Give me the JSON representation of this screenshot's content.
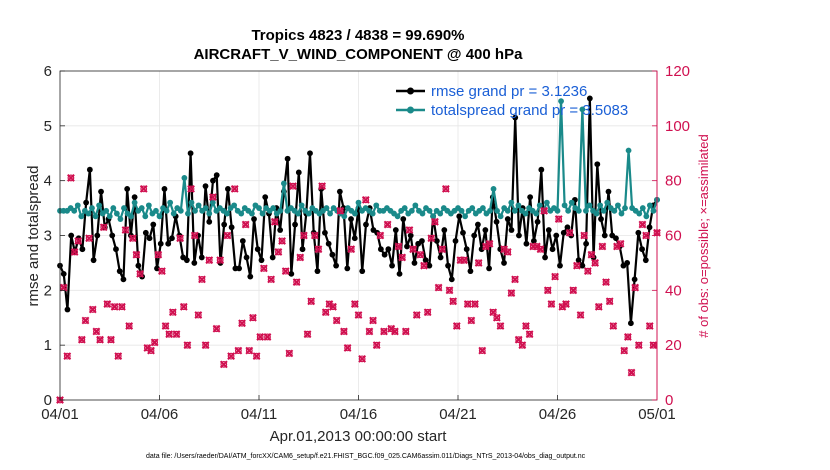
{
  "chart_data": {
    "type": "line",
    "title": "Tropics 4823 / 4838 = 99.690%",
    "subtitle": "AIRCRAFT_V_WIND_COMPONENT @ 400 hPa",
    "xlabel": "Apr.01,2013 00:00:00 start",
    "ylabel": "rmse and totalspread",
    "y2label": "# of obs: o=possible; ×=assimilated",
    "footnote": "data file: /Users/raeder/DAI/ATM_forcXX/CAM6_setup/f.e21.FHIST_BGC.f09_025.CAM6assim.011/Diags_NTrS_2013-04/obs_diag_output.nc",
    "x_tick_labels": [
      "04/01",
      "04/06",
      "04/11",
      "04/16",
      "04/21",
      "04/26",
      "05/01"
    ],
    "y_tick_labels": [
      "0",
      "1",
      "2",
      "3",
      "4",
      "5",
      "6"
    ],
    "y2_tick_labels": [
      "0",
      "20",
      "40",
      "60",
      "80",
      "100",
      "120"
    ],
    "xlim": [
      0,
      30
    ],
    "ylim": [
      0,
      6
    ],
    "y2lim": [
      0,
      120
    ],
    "grid": true,
    "legend_position": "top-right",
    "series": [
      {
        "name": "rmse grand pr = 3.1236",
        "color": "#000000",
        "axis": "left",
        "marker": "circle",
        "values": [
          2.45,
          2.3,
          1.65,
          3.0,
          2.7,
          2.95,
          2.75,
          3.6,
          4.2,
          2.55,
          3.0,
          3.8,
          3.15,
          3.3,
          3.0,
          2.75,
          2.35,
          2.2,
          3.85,
          3.0,
          3.7,
          2.45,
          2.25,
          3.05,
          2.95,
          3.2,
          2.4,
          2.85,
          3.85,
          2.85,
          2.95,
          3.35,
          3.0,
          2.6,
          2.55,
          4.5,
          2.5,
          3.0,
          2.6,
          3.9,
          3.25,
          4.0,
          4.1,
          2.5,
          3.2,
          3.85,
          3.15,
          2.4,
          2.4,
          2.9,
          2.6,
          2.25,
          3.3,
          2.75,
          2.55,
          3.7,
          3.4,
          2.6,
          3.5,
          3.1,
          3.8,
          4.4,
          2.3,
          3.2,
          4.15,
          2.75,
          3.4,
          4.5,
          3.05,
          2.35,
          3.85,
          3.05,
          2.85,
          2.65,
          2.45,
          3.8,
          3.5,
          2.4,
          3.3,
          2.95,
          3.5,
          2.35,
          3.2,
          3.5,
          3.1,
          3.05,
          2.75,
          2.65,
          2.75,
          2.45,
          3.1,
          2.3,
          3.3,
          2.8,
          3.0,
          2.5,
          2.85,
          2.9,
          2.55,
          2.45,
          3.35,
          2.9,
          2.6,
          3.1,
          2.45,
          2.2,
          2.9,
          3.35,
          3.05,
          2.75,
          2.35,
          3.0,
          3.2,
          2.75,
          3.1,
          2.4,
          3.7,
          3.25,
          2.75,
          2.5,
          3.3,
          3.1,
          5.15,
          3.0,
          3.5,
          2.85,
          3.7,
          2.9,
          3.25,
          4.2,
          2.6,
          3.1,
          2.75,
          3.0,
          2.45,
          3.05,
          3.15,
          3.0,
          3.65,
          2.55,
          2.45,
          2.85,
          5.5,
          2.6,
          4.3,
          3.3,
          3.0,
          3.8,
          3.0,
          2.95,
          2.8,
          2.45,
          2.5,
          1.4,
          2.2,
          3.05,
          2.75,
          2.55,
          3.15,
          3.55,
          3.65
        ]
      },
      {
        "name": "totalspread grand pr = 3.5083",
        "color": "#1a8a8a",
        "axis": "left",
        "marker": "circle",
        "values": [
          3.45,
          3.45,
          3.45,
          3.5,
          3.45,
          3.55,
          3.35,
          3.45,
          3.4,
          3.5,
          3.35,
          3.55,
          3.4,
          3.45,
          3.35,
          3.5,
          3.4,
          3.3,
          3.5,
          3.4,
          3.35,
          3.6,
          3.45,
          3.5,
          3.35,
          3.55,
          3.4,
          3.45,
          3.35,
          3.5,
          3.45,
          3.6,
          3.4,
          3.5,
          3.45,
          4.05,
          3.4,
          3.6,
          3.45,
          3.55,
          3.45,
          3.5,
          3.4,
          3.6,
          3.45,
          3.5,
          3.45,
          3.4,
          3.5,
          3.55,
          3.45,
          3.4,
          3.5,
          3.45,
          3.4,
          3.55,
          3.5,
          3.4,
          3.5,
          3.45,
          3.5,
          3.4,
          3.45,
          3.95,
          3.45,
          3.5,
          3.45,
          3.4,
          3.55,
          3.45,
          3.4,
          3.5,
          3.45,
          3.4,
          3.45,
          3.5,
          3.4,
          3.5,
          3.45,
          3.4,
          3.35,
          3.5,
          3.45,
          3.4,
          3.6,
          3.45,
          3.5,
          3.45,
          3.4,
          3.55,
          3.45,
          3.45,
          3.5,
          3.45,
          3.4,
          3.35,
          3.45,
          3.5,
          3.4,
          3.45,
          3.55,
          3.45,
          3.4,
          3.5,
          3.45,
          3.35,
          3.45,
          3.4,
          3.5,
          3.45,
          3.4,
          3.45,
          3.5,
          3.45,
          3.35,
          3.45,
          3.5,
          3.4,
          3.45,
          3.5,
          3.4,
          3.45,
          3.85,
          3.45,
          3.35,
          3.5,
          3.45,
          3.6,
          3.45,
          3.55,
          3.45,
          3.4,
          3.5,
          3.45,
          3.4,
          3.55,
          3.45,
          3.6,
          3.45,
          3.5,
          3.45,
          5.45,
          3.55,
          3.45,
          3.6,
          3.5,
          3.45,
          5.3,
          3.45,
          3.55,
          3.45,
          3.4,
          3.55,
          3.45,
          3.6,
          3.5,
          3.45,
          3.55,
          3.4,
          3.5,
          4.55,
          3.5,
          3.45,
          3.4,
          3.5,
          3.35,
          3.55,
          3.45,
          3.65
        ]
      },
      {
        "name": "obs possible",
        "color": "#d01050",
        "axis": "right",
        "marker": "circle",
        "values": [
          0,
          41,
          16,
          81,
          54,
          58,
          22,
          29,
          59,
          33,
          25,
          22,
          63,
          35,
          22,
          34,
          16,
          34,
          62,
          27,
          59,
          53,
          46,
          77,
          19,
          18,
          21,
          53,
          47,
          27,
          24,
          32,
          24,
          59,
          34,
          20,
          77,
          60,
          31,
          44,
          20,
          51,
          74,
          26,
          51,
          13,
          60,
          16,
          77,
          18,
          28,
          64,
          18,
          30,
          16,
          23,
          48,
          23,
          44,
          65,
          54,
          58,
          47,
          17,
          78,
          43,
          52,
          60,
          24,
          36,
          60,
          55,
          78,
          32,
          35,
          34,
          29,
          69,
          25,
          19,
          55,
          35,
          31,
          15,
          73,
          25,
          29,
          20,
          60,
          25,
          64,
          26,
          25,
          56,
          52,
          25,
          62,
          55,
          31,
          53,
          49,
          32,
          59,
          65,
          41,
          55,
          77,
          40,
          36,
          27,
          51,
          51,
          35,
          29,
          35,
          50,
          18,
          56,
          57,
          32,
          30,
          27,
          55,
          54,
          39,
          44,
          22,
          20,
          27,
          24,
          56,
          56,
          55,
          69,
          40,
          35,
          45,
          66,
          34,
          35,
          61,
          40,
          49,
          31,
          60,
          47,
          53,
          50,
          34,
          56,
          43,
          36,
          27,
          56,
          57,
          18,
          23,
          10,
          41,
          20,
          64,
          60,
          27,
          20,
          61
        ]
      },
      {
        "name": "obs assimilated",
        "color": "#d01050",
        "axis": "right",
        "marker": "x",
        "values": [
          0,
          41,
          16,
          81,
          54,
          58,
          22,
          29,
          59,
          33,
          25,
          22,
          63,
          35,
          22,
          34,
          16,
          34,
          62,
          27,
          59,
          53,
          46,
          77,
          19,
          18,
          21,
          53,
          47,
          27,
          24,
          32,
          24,
          59,
          34,
          20,
          77,
          60,
          31,
          44,
          20,
          51,
          74,
          26,
          51,
          13,
          60,
          16,
          77,
          18,
          28,
          64,
          18,
          30,
          16,
          23,
          48,
          23,
          44,
          65,
          54,
          58,
          47,
          17,
          78,
          43,
          52,
          60,
          24,
          36,
          60,
          55,
          78,
          32,
          35,
          34,
          29,
          69,
          25,
          19,
          55,
          35,
          31,
          15,
          73,
          25,
          29,
          20,
          60,
          25,
          64,
          26,
          25,
          56,
          52,
          25,
          62,
          55,
          31,
          53,
          49,
          32,
          59,
          65,
          41,
          55,
          77,
          40,
          36,
          27,
          51,
          51,
          35,
          29,
          35,
          50,
          18,
          56,
          57,
          32,
          30,
          27,
          55,
          54,
          39,
          44,
          22,
          20,
          27,
          24,
          56,
          56,
          55,
          69,
          40,
          35,
          45,
          66,
          34,
          35,
          61,
          40,
          49,
          31,
          60,
          47,
          53,
          50,
          34,
          56,
          43,
          36,
          27,
          56,
          57,
          18,
          23,
          10,
          41,
          20,
          64,
          60,
          27,
          20,
          61
        ]
      }
    ]
  }
}
